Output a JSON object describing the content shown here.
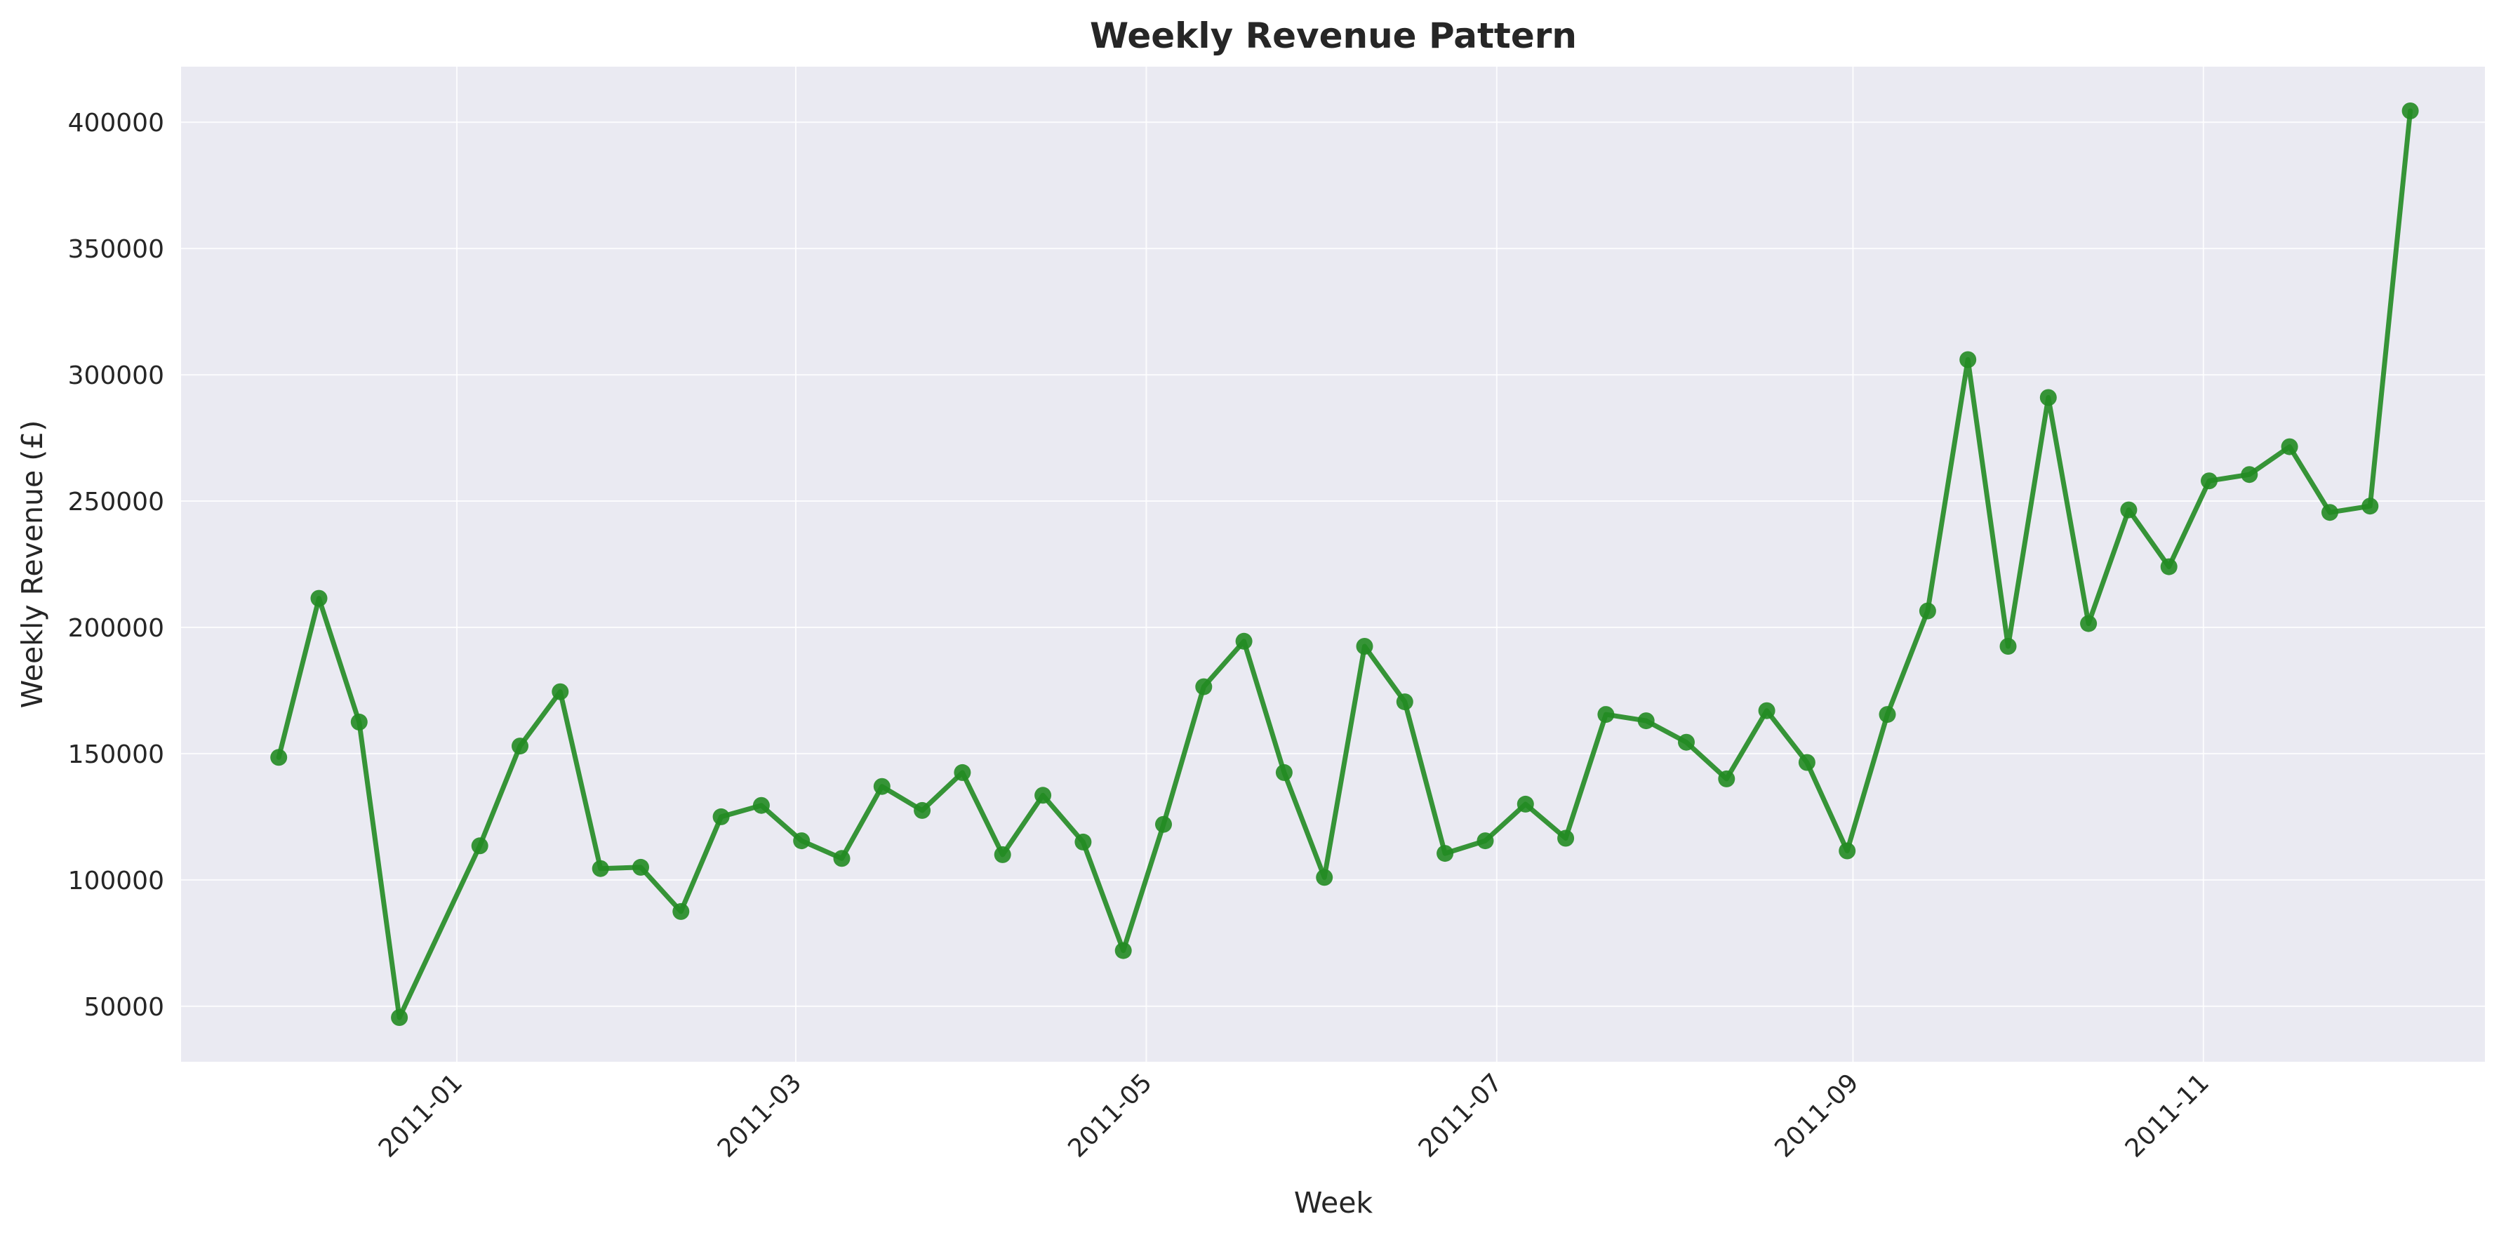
{
  "chart_data": {
    "type": "line",
    "title": "Weekly Revenue Pattern",
    "xlabel": "Week",
    "ylabel": "Weekly Revenue (£)",
    "grid": true,
    "legend": "none",
    "x_ticks": [
      "2011-01",
      "2011-03",
      "2011-05",
      "2011-07",
      "2011-09",
      "2011-11"
    ],
    "y_ticks": [
      50000,
      100000,
      150000,
      200000,
      250000,
      300000,
      350000,
      400000
    ],
    "xlim": [
      "2010-11-14",
      "2011-12-20"
    ],
    "ylim": [
      28000,
      422000
    ],
    "colors": {
      "line": "#228B22",
      "plot_background": "#EAEAF2",
      "grid": "#FFFFFF"
    },
    "series": [
      {
        "x": [
          "2010-12-01",
          "2010-12-08",
          "2010-12-15",
          "2010-12-22",
          "2011-01-05",
          "2011-01-12",
          "2011-01-19",
          "2011-01-26",
          "2011-02-02",
          "2011-02-09",
          "2011-02-16",
          "2011-02-23",
          "2011-03-02",
          "2011-03-09",
          "2011-03-16",
          "2011-03-23",
          "2011-03-30",
          "2011-04-06",
          "2011-04-13",
          "2011-04-20",
          "2011-04-27",
          "2011-05-04",
          "2011-05-11",
          "2011-05-18",
          "2011-05-25",
          "2011-06-01",
          "2011-06-08",
          "2011-06-15",
          "2011-06-22",
          "2011-06-29",
          "2011-07-06",
          "2011-07-13",
          "2011-07-20",
          "2011-07-27",
          "2011-08-03",
          "2011-08-10",
          "2011-08-17",
          "2011-08-24",
          "2011-08-31",
          "2011-09-07",
          "2011-09-14",
          "2011-09-21",
          "2011-09-28",
          "2011-10-05",
          "2011-10-12",
          "2011-10-19",
          "2011-10-26",
          "2011-11-02",
          "2011-11-09",
          "2011-11-16",
          "2011-11-23",
          "2011-11-30",
          "2011-12-07"
        ],
        "values": [
          148500,
          211500,
          162500,
          45500,
          113500,
          153000,
          174500,
          104500,
          105000,
          87500,
          125000,
          129500,
          115500,
          108500,
          137000,
          127500,
          142500,
          110000,
          133500,
          115000,
          72000,
          122000,
          176500,
          194500,
          142500,
          101000,
          192500,
          170500,
          110500,
          115500,
          130000,
          116500,
          165500,
          163000,
          154500,
          140000,
          167000,
          146500,
          111500,
          165500,
          206500,
          306000,
          192500,
          291000,
          201500,
          246500,
          224000,
          258000,
          260500,
          271500,
          245500,
          248000,
          404500
        ]
      }
    ]
  }
}
